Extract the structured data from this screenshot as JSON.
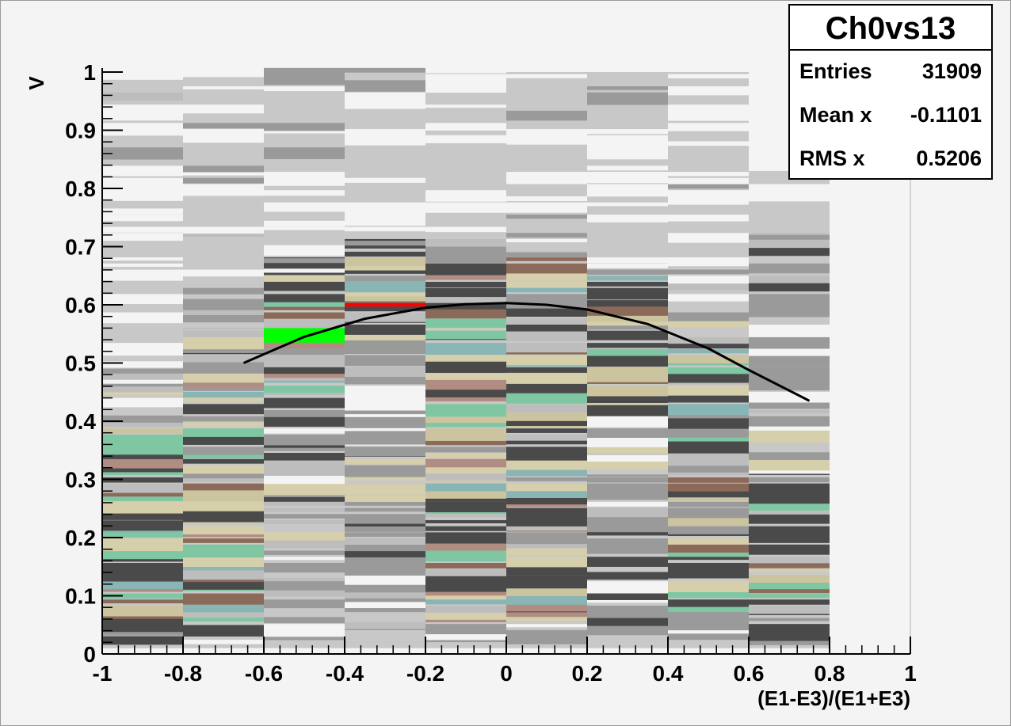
{
  "chart_data": {
    "type": "heatmap",
    "xlabel": "(E1-E3)/(E1+E3)",
    "ylabel": "V",
    "xlim": [
      -1,
      1
    ],
    "ylim": [
      0,
      1
    ],
    "x_ticks": [
      "-1",
      "-0.8",
      "-0.6",
      "-0.4",
      "-0.2",
      "0",
      "0.2",
      "0.4",
      "0.6",
      "0.8",
      "1"
    ],
    "y_ticks": [
      "0",
      "0.1",
      "0.2",
      "0.3",
      "0.4",
      "0.5",
      "0.6",
      "0.7",
      "0.8",
      "0.9",
      "1"
    ],
    "x_bin_edges": [
      -1,
      -0.8,
      -0.6,
      -0.4,
      -0.2,
      0,
      0.2,
      0.4,
      0.6,
      0.8,
      1
    ],
    "columns": [
      {
        "x_range": [
          -1.0,
          -0.8
        ],
        "top_light": 1.0,
        "mid_top": 0.49,
        "dense_range": [
          0.05,
          0.38
        ]
      },
      {
        "x_range": [
          -0.8,
          -0.6
        ],
        "top_light": 1.0,
        "mid_top": 0.61,
        "dense_range": [
          0.06,
          0.52
        ]
      },
      {
        "x_range": [
          -0.6,
          -0.4
        ],
        "top_light": 1.0,
        "mid_top": 0.68,
        "dense_range": [
          0.45,
          0.66
        ]
      },
      {
        "x_range": [
          -0.4,
          -0.2
        ],
        "top_light": 1.0,
        "mid_top": 0.71,
        "dense_range": [
          0.55,
          0.69
        ]
      },
      {
        "x_range": [
          -0.2,
          0.0
        ],
        "top_light": 1.0,
        "mid_top": 0.7,
        "dense_range": [
          0.05,
          0.68
        ]
      },
      {
        "x_range": [
          0.0,
          0.2
        ],
        "top_light": 1.0,
        "mid_top": 0.69,
        "dense_range": [
          0.05,
          0.68
        ]
      },
      {
        "x_range": [
          0.2,
          0.4
        ],
        "top_light": 1.0,
        "mid_top": 0.66,
        "dense_range": [
          0.4,
          0.64
        ]
      },
      {
        "x_range": [
          0.4,
          0.6
        ],
        "top_light": 1.0,
        "mid_top": 0.58,
        "dense_range": [
          0.05,
          0.52
        ]
      },
      {
        "x_range": [
          0.6,
          0.8
        ],
        "top_light": 0.83,
        "mid_top": 0.72,
        "dense_range": [
          0.05,
          0.3
        ]
      }
    ],
    "fit_curve": {
      "color": "#000000",
      "x": [
        -0.65,
        -0.5,
        -0.35,
        -0.2,
        -0.1,
        0.0,
        0.1,
        0.2,
        0.35,
        0.5,
        0.6,
        0.75
      ],
      "y": [
        0.5,
        0.545,
        0.576,
        0.595,
        0.601,
        0.603,
        0.6,
        0.592,
        0.567,
        0.525,
        0.488,
        0.435
      ]
    },
    "highlights": [
      {
        "color": "#00ff00",
        "x_range": [
          -0.6,
          -0.4
        ],
        "y_range": [
          0.535,
          0.56
        ]
      },
      {
        "color": "#ff0000",
        "x_range": [
          -0.4,
          -0.2
        ],
        "y_range": [
          0.597,
          0.603
        ]
      }
    ],
    "legend": "top-right",
    "grid": false
  },
  "stats": {
    "title": "Ch0vs13",
    "rows": [
      {
        "label": "Entries",
        "value": "31909"
      },
      {
        "label": "Mean x",
        "value": "-0.1101"
      },
      {
        "label": "RMS x",
        "value": "0.5206"
      }
    ]
  }
}
